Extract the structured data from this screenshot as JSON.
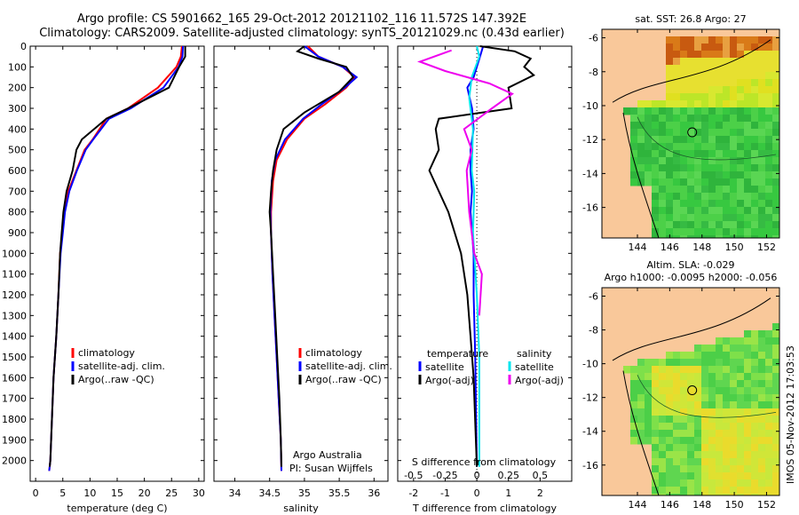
{
  "header": {
    "line1": "Argo profile: CS 5901662_165 29-Oct-2012 20121102_116 11.572S 147.392E",
    "line2": "Climatology: CARS2009. Satellite-adjusted climatology: synTS_20121029.nc (0.43d earlier)"
  },
  "colors": {
    "climatology": "#ff0000",
    "satellite": "#0000ff",
    "argo": "#000000",
    "satellite_s": "#00e5ee",
    "argo_s": "#ee00ee"
  },
  "chart_data": [
    {
      "type": "line",
      "id": "temperature",
      "xlabel": "temperature (deg C)",
      "ylabel": "",
      "xlim": [
        -1,
        31
      ],
      "ylim": [
        2100,
        0
      ],
      "xticks": [
        0,
        5,
        10,
        15,
        20,
        25,
        30
      ],
      "xtick_labels": [
        "0",
        "5",
        "10",
        "15",
        "20",
        "25",
        "30"
      ],
      "yticks": [
        0,
        100,
        200,
        300,
        400,
        500,
        600,
        700,
        800,
        900,
        1000,
        1100,
        1200,
        1300,
        1400,
        1500,
        1600,
        1700,
        1800,
        1900,
        2000
      ],
      "legend": [
        "climatology",
        "satellite-adj. clim.",
        "Argo(..raw -QC)"
      ],
      "series": [
        {
          "name": "climatology",
          "color": "#ff0000",
          "points": [
            [
              26.9,
              0
            ],
            [
              26.7,
              50
            ],
            [
              25.9,
              100
            ],
            [
              22.5,
              200
            ],
            [
              17,
              300
            ],
            [
              13,
              350
            ],
            [
              10.5,
              450
            ],
            [
              9,
              500
            ],
            [
              7.5,
              600
            ],
            [
              6,
              700
            ],
            [
              5.3,
              800
            ],
            [
              4.9,
              900
            ],
            [
              4.5,
              1000
            ],
            [
              4.2,
              1200
            ],
            [
              3.8,
              1400
            ],
            [
              3.3,
              1600
            ],
            [
              3,
              1800
            ],
            [
              2.7,
              2000
            ],
            [
              2.5,
              2050
            ]
          ]
        },
        {
          "name": "satellite-adj. clim.",
          "color": "#0000ff",
          "points": [
            [
              27.1,
              0
            ],
            [
              27,
              50
            ],
            [
              26.3,
              100
            ],
            [
              23.5,
              200
            ],
            [
              17.5,
              300
            ],
            [
              13.5,
              350
            ],
            [
              10.6,
              450
            ],
            [
              9.2,
              500
            ],
            [
              7.6,
              600
            ],
            [
              6.2,
              700
            ],
            [
              5.4,
              800
            ],
            [
              5,
              900
            ],
            [
              4.6,
              1000
            ],
            [
              4.2,
              1200
            ],
            [
              3.8,
              1400
            ],
            [
              3.3,
              1600
            ],
            [
              3,
              1800
            ],
            [
              2.7,
              2000
            ],
            [
              2.5,
              2050
            ]
          ]
        },
        {
          "name": "Argo(..raw -QC)",
          "color": "#000000",
          "points": [
            [
              27.5,
              0
            ],
            [
              27.5,
              50
            ],
            [
              26.4,
              100
            ],
            [
              24.5,
              200
            ],
            [
              17,
              300
            ],
            [
              13,
              350
            ],
            [
              8.5,
              450
            ],
            [
              7.5,
              500
            ],
            [
              6.8,
              600
            ],
            [
              5.7,
              700
            ],
            [
              5.1,
              800
            ],
            [
              4.8,
              900
            ],
            [
              4.5,
              1000
            ],
            [
              4.2,
              1200
            ],
            [
              3.8,
              1400
            ],
            [
              3.3,
              1600
            ],
            [
              3,
              1800
            ],
            [
              2.7,
              2000
            ],
            [
              2.6,
              2030
            ]
          ]
        }
      ]
    },
    {
      "type": "line",
      "id": "salinity",
      "xlabel": "salinity",
      "xlim": [
        33.7,
        36.2
      ],
      "ylim": [
        2100,
        0
      ],
      "xticks": [
        34,
        34.5,
        35,
        35.5,
        36
      ],
      "xtick_labels": [
        "34",
        "34.5",
        "35",
        "35.5",
        "36"
      ],
      "yticks": [
        0,
        100,
        200,
        300,
        400,
        500,
        600,
        700,
        800,
        900,
        1000,
        1100,
        1200,
        1300,
        1400,
        1500,
        1600,
        1700,
        1800,
        1900,
        2000
      ],
      "legend": [
        "climatology",
        "satellite-adj. clim.",
        "Argo(..raw -QC)"
      ],
      "annotation_line1": "Argo Australia",
      "annotation_line2": "PI: Susan Wijffels",
      "series": [
        {
          "name": "climatology",
          "color": "#ff0000",
          "points": [
            [
              35.05,
              0
            ],
            [
              35.2,
              50
            ],
            [
              35.55,
              100
            ],
            [
              35.72,
              150
            ],
            [
              35.6,
              200
            ],
            [
              35.3,
              280
            ],
            [
              35.0,
              350
            ],
            [
              34.75,
              450
            ],
            [
              34.6,
              550
            ],
            [
              34.55,
              650
            ],
            [
              34.52,
              800
            ],
            [
              34.52,
              900
            ],
            [
              34.54,
              1100
            ],
            [
              34.57,
              1300
            ],
            [
              34.6,
              1500
            ],
            [
              34.63,
              1700
            ],
            [
              34.66,
              1900
            ],
            [
              34.67,
              2050
            ]
          ]
        },
        {
          "name": "satellite-adj. clim.",
          "color": "#0000ff",
          "points": [
            [
              35.0,
              0
            ],
            [
              35.2,
              50
            ],
            [
              35.55,
              100
            ],
            [
              35.75,
              150
            ],
            [
              35.58,
              200
            ],
            [
              35.25,
              280
            ],
            [
              34.98,
              350
            ],
            [
              34.72,
              450
            ],
            [
              34.58,
              550
            ],
            [
              34.53,
              650
            ],
            [
              34.51,
              800
            ],
            [
              34.52,
              900
            ],
            [
              34.54,
              1100
            ],
            [
              34.57,
              1300
            ],
            [
              34.6,
              1500
            ],
            [
              34.63,
              1700
            ],
            [
              34.66,
              1900
            ],
            [
              34.67,
              2050
            ]
          ]
        },
        {
          "name": "Argo(..raw -QC)",
          "color": "#000000",
          "points": [
            [
              35.0,
              0
            ],
            [
              34.9,
              25
            ],
            [
              35.2,
              60
            ],
            [
              35.6,
              100
            ],
            [
              35.7,
              150
            ],
            [
              35.5,
              220
            ],
            [
              35.0,
              320
            ],
            [
              34.7,
              400
            ],
            [
              34.6,
              500
            ],
            [
              34.55,
              600
            ],
            [
              34.52,
              700
            ],
            [
              34.5,
              800
            ],
            [
              34.52,
              900
            ],
            [
              34.55,
              1100
            ],
            [
              34.58,
              1300
            ],
            [
              34.61,
              1500
            ],
            [
              34.64,
              1700
            ],
            [
              34.66,
              1900
            ],
            [
              34.67,
              2030
            ]
          ]
        }
      ]
    },
    {
      "type": "line",
      "id": "difference",
      "xlabel": "T difference from climatology",
      "xlabel_top": "S difference from climatology",
      "xlim": [
        -2.5,
        3
      ],
      "ylim": [
        2100,
        0
      ],
      "xticks": [
        -2,
        -1,
        0,
        1,
        2
      ],
      "xtick_labels": [
        "-2",
        "-1",
        "0",
        "1",
        "2"
      ],
      "s_ticks": [
        -0.5,
        -0.25,
        0,
        0.25,
        0.5
      ],
      "s_tick_labels": [
        "-0.5",
        "-0.25",
        "0",
        "0.25",
        "0.5"
      ],
      "yticks": [
        0,
        100,
        200,
        300,
        400,
        500,
        600,
        700,
        800,
        900,
        1000,
        1100,
        1200,
        1300,
        1400,
        1500,
        1600,
        1700,
        1800,
        1900,
        2000
      ],
      "legend_t_title": "temperature",
      "legend_t": [
        "satellite",
        "Argo(-adj)"
      ],
      "legend_s_title": "salinity",
      "legend_s": [
        "satellite",
        "Argo(-adj)"
      ],
      "series": [
        {
          "name": "T satellite",
          "color": "#0000ff",
          "points": [
            [
              0.2,
              0
            ],
            [
              0.1,
              50
            ],
            [
              -0.1,
              150
            ],
            [
              -0.3,
              200
            ],
            [
              -0.15,
              300
            ],
            [
              -0.1,
              400
            ],
            [
              -0.2,
              500
            ],
            [
              -0.2,
              600
            ],
            [
              -0.15,
              700
            ],
            [
              -0.2,
              800
            ],
            [
              -0.1,
              1000
            ],
            [
              -0.1,
              1200
            ],
            [
              -0.05,
              1500
            ],
            [
              0,
              2030
            ]
          ]
        },
        {
          "name": "T Argo(-adj)",
          "color": "#000000",
          "points": [
            [
              0.1,
              0
            ],
            [
              1.2,
              25
            ],
            [
              1.7,
              60
            ],
            [
              1.5,
              100
            ],
            [
              1.8,
              140
            ],
            [
              1.0,
              200
            ],
            [
              1.1,
              300
            ],
            [
              -1.2,
              350
            ],
            [
              -1.3,
              400
            ],
            [
              -1.2,
              500
            ],
            [
              -1.5,
              600
            ],
            [
              -0.9,
              800
            ],
            [
              -0.5,
              1000
            ],
            [
              -0.3,
              1200
            ],
            [
              -0.2,
              1400
            ],
            [
              -0.1,
              1600
            ],
            [
              0,
              2030
            ]
          ]
        },
        {
          "name": "S satellite",
          "color": "#00e5ee",
          "points": [
            [
              0.0,
              0
            ],
            [
              0.02,
              50
            ],
            [
              -0.04,
              150
            ],
            [
              -0.06,
              250
            ],
            [
              -0.03,
              400
            ],
            [
              -0.04,
              600
            ],
            [
              -0.02,
              700
            ],
            [
              -0.03,
              900
            ],
            [
              0.0,
              1200
            ],
            [
              0.02,
              1500
            ],
            [
              0.02,
              2030
            ]
          ]
        },
        {
          "name": "S Argo(-adj)",
          "color": "#ee00ee",
          "points": [
            [
              -0.2,
              20
            ],
            [
              -0.45,
              75
            ],
            [
              -0.25,
              120
            ],
            [
              0.1,
              180
            ],
            [
              0.28,
              230
            ],
            [
              0.12,
              300
            ],
            [
              -0.1,
              400
            ],
            [
              -0.04,
              500
            ],
            [
              -0.08,
              600
            ],
            [
              -0.06,
              800
            ],
            [
              -0.02,
              1000
            ],
            [
              0.04,
              1100
            ],
            [
              0.02,
              1300
            ]
          ]
        }
      ]
    },
    {
      "type": "heatmap",
      "id": "sst_map",
      "title": "sat. SST: 26.8  Argo: 27",
      "xlim": [
        141.8,
        152.8
      ],
      "ylim": [
        -17.8,
        -5.5
      ],
      "xticks": [
        144,
        146,
        148,
        150,
        152
      ],
      "xtick_labels": [
        "144",
        "146",
        "148",
        "150",
        "152"
      ],
      "yticks": [
        -6,
        -8,
        -10,
        -12,
        -14,
        -16
      ],
      "ytick_labels": [
        "-6",
        "-8",
        "-10",
        "-12",
        "-14",
        "-16"
      ],
      "marker": {
        "lon": 147.392,
        "lat": -11.572
      }
    },
    {
      "type": "heatmap",
      "id": "sla_map",
      "title": "Altim. SLA: -0.029",
      "subtitle": "Argo h1000: -0.0095  h2000: -0.056",
      "xlim": [
        141.8,
        152.8
      ],
      "ylim": [
        -17.8,
        -5.5
      ],
      "xticks": [
        144,
        146,
        148,
        150,
        152
      ],
      "xtick_labels": [
        "144",
        "146",
        "148",
        "150",
        "152"
      ],
      "yticks": [
        -6,
        -8,
        -10,
        -12,
        -14,
        -16
      ],
      "ytick_labels": [
        "-6",
        "-8",
        "-10",
        "-12",
        "-14",
        "-16"
      ],
      "marker": {
        "lon": 147.392,
        "lat": -11.572
      }
    }
  ],
  "footer": {
    "stamp": "IMOS 05-Nov-2012 17:03:53"
  }
}
